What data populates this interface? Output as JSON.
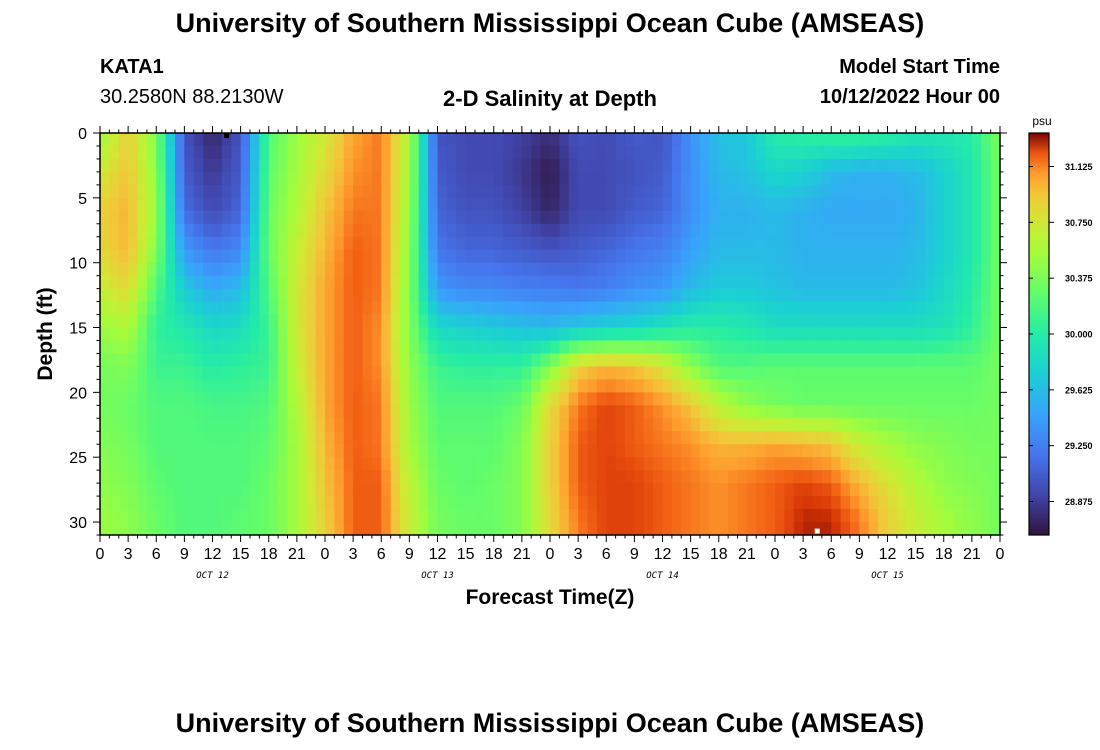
{
  "header": {
    "title": "University of Southern Mississippi Ocean Cube (AMSEAS)",
    "station": "KATA1",
    "coords": "30.2580N  88.2130W",
    "plot_title": "2-D Salinity at Depth",
    "model_start_label": "Model Start Time",
    "model_start_value": "10/12/2022 Hour 00"
  },
  "footer": {
    "title": "University of Southern Mississippi Ocean Cube (AMSEAS)"
  },
  "chart_data": {
    "type": "heatmap",
    "variable": "Salinity",
    "xlabel": "Forecast Time(Z)",
    "ylabel": "Depth (ft)",
    "x_unit": "hours since 10/12/2022 00Z",
    "xlim": [
      0,
      96
    ],
    "ylim": [
      31,
      0
    ],
    "x_ticks": [
      0,
      3,
      6,
      9,
      12,
      15,
      18,
      21,
      24,
      27,
      30,
      33,
      36,
      39,
      42,
      45,
      48,
      51,
      54,
      57,
      60,
      63,
      66,
      69,
      72,
      75,
      78,
      81,
      84,
      87,
      90,
      93,
      96
    ],
    "x_tick_labels": [
      "0",
      "3",
      "6",
      "9",
      "12",
      "15",
      "18",
      "21",
      "0",
      "3",
      "6",
      "9",
      "12",
      "15",
      "18",
      "21",
      "0",
      "3",
      "6",
      "9",
      "12",
      "15",
      "18",
      "21",
      "0",
      "3",
      "6",
      "9",
      "12",
      "15",
      "18",
      "21",
      "0"
    ],
    "day_labels": [
      {
        "text": "OCT 12",
        "hour": 12
      },
      {
        "text": "OCT 13",
        "hour": 36
      },
      {
        "text": "OCT 14",
        "hour": 60
      },
      {
        "text": "OCT 15",
        "hour": 84
      }
    ],
    "y_ticks": [
      0,
      5,
      10,
      15,
      20,
      25,
      30
    ],
    "colorbar": {
      "unit": "psu",
      "range": [
        28.65,
        31.35
      ],
      "ticks": [
        31.125,
        30.75,
        30.375,
        30.0,
        29.625,
        29.25,
        28.875
      ],
      "tick_labels": [
        "31.125",
        "30.750",
        "30.375",
        "30.000",
        "29.625",
        "29.250",
        "28.875"
      ]
    },
    "time_hours": [
      0,
      3,
      6,
      9,
      12,
      15,
      18,
      21,
      24,
      27,
      30,
      33,
      36,
      39,
      42,
      45,
      48,
      51,
      54,
      57,
      60,
      63,
      66,
      69,
      72,
      75,
      78,
      81,
      84,
      87,
      90,
      93,
      96
    ],
    "depth_ft": [
      0,
      3,
      6,
      9,
      12,
      15,
      18,
      21,
      24,
      27,
      30
    ],
    "salinity_psu": [
      [
        30.5,
        30.9,
        30.4,
        29.0,
        28.75,
        29.0,
        30.2,
        30.5,
        30.75,
        31.05,
        31.15,
        30.6,
        29.0,
        28.95,
        28.95,
        28.9,
        28.8,
        29.0,
        28.95,
        29.05,
        29.0,
        29.35,
        29.65,
        29.7,
        30.0,
        30.05,
        30.1,
        30.1,
        30.05,
        29.95,
        29.95,
        30.0,
        30.4
      ],
      [
        30.75,
        30.95,
        30.45,
        29.05,
        28.85,
        29.05,
        30.25,
        30.55,
        30.85,
        31.1,
        31.15,
        30.55,
        29.05,
        28.95,
        28.95,
        28.85,
        28.7,
        28.95,
        28.95,
        29.0,
        29.05,
        29.35,
        29.6,
        29.65,
        29.8,
        29.75,
        29.6,
        29.55,
        29.55,
        29.6,
        29.75,
        29.95,
        30.35
      ],
      [
        30.9,
        31.0,
        30.5,
        29.15,
        28.95,
        29.1,
        30.3,
        30.6,
        30.95,
        31.15,
        31.15,
        30.5,
        29.1,
        29.0,
        29.0,
        28.9,
        28.75,
        28.95,
        28.95,
        29.05,
        29.1,
        29.35,
        29.55,
        29.55,
        29.6,
        29.55,
        29.5,
        29.5,
        29.5,
        29.55,
        29.75,
        29.95,
        30.35
      ],
      [
        30.85,
        31.0,
        30.4,
        29.4,
        29.2,
        29.3,
        30.3,
        30.7,
        31.0,
        31.2,
        31.15,
        30.45,
        29.2,
        29.1,
        29.1,
        29.05,
        29.0,
        29.05,
        29.1,
        29.2,
        29.25,
        29.45,
        29.6,
        29.6,
        29.6,
        29.55,
        29.55,
        29.55,
        29.55,
        29.6,
        29.75,
        29.95,
        30.35
      ],
      [
        30.7,
        30.85,
        30.2,
        29.7,
        29.5,
        29.6,
        30.2,
        30.75,
        31.05,
        31.2,
        31.15,
        30.4,
        29.4,
        29.3,
        29.3,
        29.25,
        29.25,
        29.2,
        29.25,
        29.35,
        29.4,
        29.6,
        29.7,
        29.7,
        29.65,
        29.6,
        29.6,
        29.6,
        29.6,
        29.65,
        29.8,
        30.0,
        30.35
      ],
      [
        30.5,
        30.6,
        30.05,
        29.95,
        29.8,
        29.85,
        30.1,
        30.75,
        31.05,
        31.2,
        31.1,
        30.4,
        29.8,
        29.75,
        29.7,
        29.65,
        29.6,
        29.7,
        29.75,
        29.8,
        29.9,
        30.0,
        30.0,
        29.95,
        29.85,
        29.85,
        29.85,
        29.85,
        29.85,
        29.85,
        29.9,
        30.05,
        30.35
      ],
      [
        30.35,
        30.4,
        30.1,
        30.1,
        30.0,
        30.05,
        30.1,
        30.7,
        31.05,
        31.2,
        31.1,
        30.45,
        30.1,
        30.05,
        30.05,
        30.05,
        30.4,
        30.9,
        31.0,
        30.95,
        30.8,
        30.45,
        30.2,
        30.2,
        30.25,
        30.25,
        30.25,
        30.25,
        30.25,
        30.25,
        30.25,
        30.25,
        30.35
      ],
      [
        30.35,
        30.3,
        30.2,
        30.2,
        30.15,
        30.15,
        30.2,
        30.6,
        31.05,
        31.2,
        31.15,
        30.5,
        30.2,
        30.2,
        30.2,
        30.3,
        30.85,
        31.15,
        31.25,
        31.2,
        31.1,
        30.95,
        30.65,
        30.45,
        30.35,
        30.3,
        30.3,
        30.3,
        30.3,
        30.3,
        30.3,
        30.3,
        30.35
      ],
      [
        30.4,
        30.35,
        30.2,
        30.2,
        30.2,
        30.2,
        30.25,
        30.55,
        31.0,
        31.2,
        31.15,
        30.55,
        30.25,
        30.25,
        30.25,
        30.4,
        30.9,
        31.2,
        31.25,
        31.2,
        31.15,
        31.1,
        31.0,
        31.0,
        31.05,
        31.0,
        30.95,
        30.7,
        30.55,
        30.45,
        30.4,
        30.35,
        30.35
      ],
      [
        30.45,
        30.4,
        30.25,
        30.2,
        30.2,
        30.2,
        30.3,
        30.55,
        30.95,
        31.2,
        31.2,
        30.65,
        30.3,
        30.25,
        30.3,
        30.4,
        30.9,
        31.2,
        31.25,
        31.25,
        31.2,
        31.15,
        31.1,
        31.15,
        31.2,
        31.25,
        31.2,
        31.0,
        30.8,
        30.6,
        30.45,
        30.4,
        30.35
      ],
      [
        30.5,
        30.45,
        30.3,
        30.2,
        30.2,
        30.25,
        30.3,
        30.55,
        30.9,
        31.2,
        31.2,
        30.7,
        30.35,
        30.3,
        30.3,
        30.4,
        30.85,
        31.15,
        31.25,
        31.25,
        31.2,
        31.15,
        31.1,
        31.15,
        31.2,
        31.3,
        31.3,
        31.15,
        30.9,
        30.7,
        30.55,
        30.45,
        30.35
      ]
    ],
    "markers": [
      {
        "hour": 13.5,
        "depth": 0.2,
        "color": "#000000"
      },
      {
        "hour": 76.5,
        "depth": 30.7,
        "color": "#ffffff"
      }
    ]
  }
}
